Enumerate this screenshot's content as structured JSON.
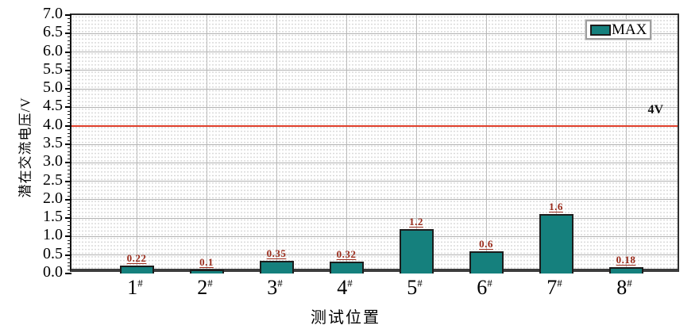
{
  "chart_data": {
    "type": "bar",
    "categories": [
      "1",
      "2",
      "3",
      "4",
      "5",
      "6",
      "7",
      "8"
    ],
    "category_suffix": "#",
    "values": [
      0.22,
      0.1,
      0.35,
      0.32,
      1.2,
      0.6,
      1.6,
      0.18
    ],
    "value_labels": [
      "0.22",
      "0.1",
      "0.35",
      "0.32",
      "1.2",
      "0.6",
      "1.6",
      "0.18"
    ],
    "title": "",
    "xlabel": "测试位置",
    "ylabel": "潜在交流电压/V",
    "ylim": [
      0,
      7
    ],
    "ytick_step": 0.5,
    "ytick_minor_step": 0.1,
    "ytick_labels": [
      "0.0",
      "0.5",
      "1.0",
      "1.5",
      "2.0",
      "2.5",
      "3.0",
      "3.5",
      "4.0",
      "4.5",
      "5.0",
      "5.5",
      "6.0",
      "6.5",
      "7.0"
    ],
    "grid": true,
    "legend": {
      "label": "MAX",
      "position": "top-right"
    },
    "reference_line": {
      "value": 4,
      "label": "4V",
      "color": "#df402c"
    },
    "colors": {
      "bar_fill": "#15807d",
      "bar_border": "#1c1c1c",
      "value_label": "#9a2b1b",
      "grid_major": "#b3b3b3",
      "reference": "#df402c"
    }
  }
}
